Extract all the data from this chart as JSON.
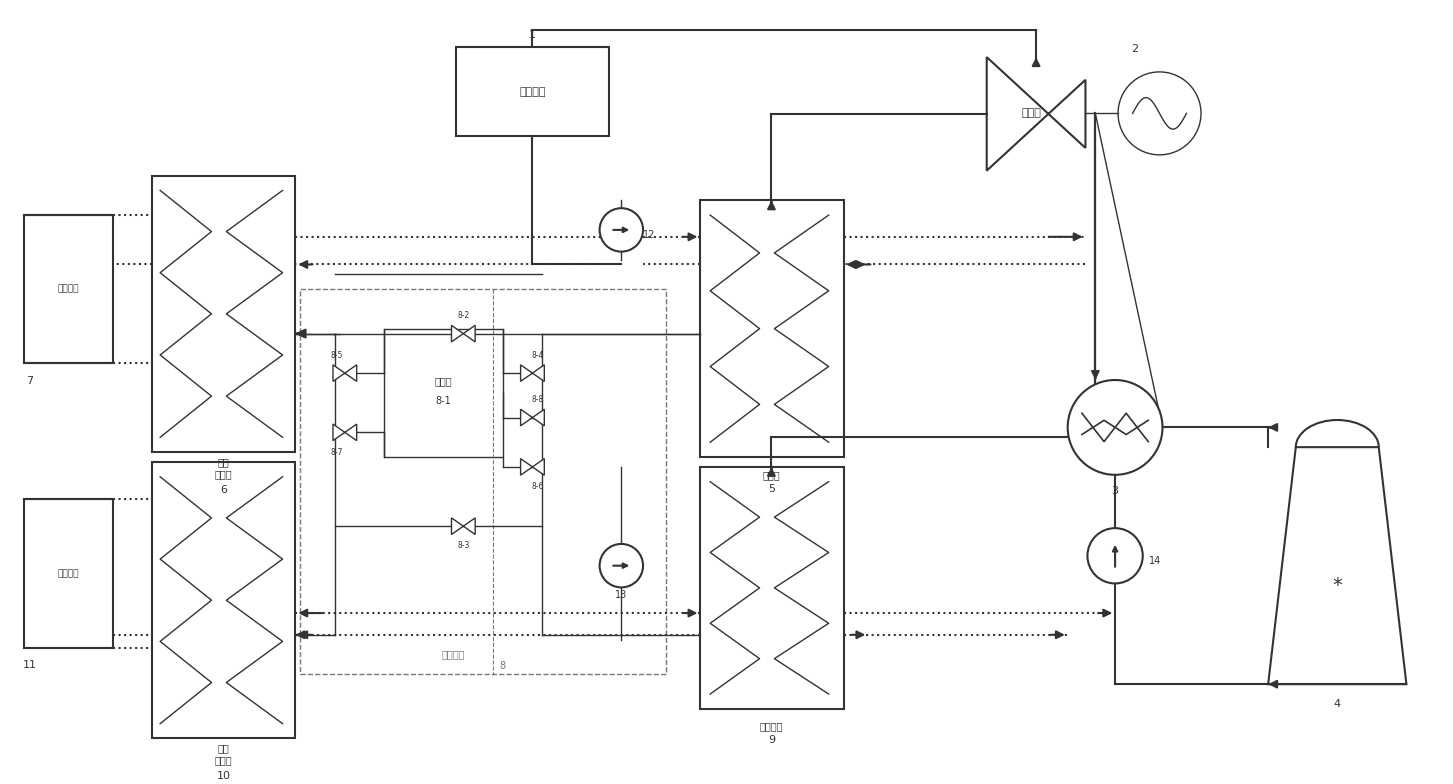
{
  "bg": "#ffffff",
  "lc": "#333333",
  "gray": "#777777",
  "fs_label": 7,
  "fs_num": 8,
  "lw_main": 1.5,
  "lw_thin": 1.0,
  "labels": {
    "boiler": "电站锅炉",
    "turbine": "汽轮机",
    "heater5": "加热器",
    "heatpump9": "热泵机组",
    "station6_1": "二级",
    "station6_2": "换热站",
    "station10_1": "二级",
    "station10_2": "换热站",
    "user7": "采暖用户",
    "user11": "采暖用户",
    "coupler1": "耦合器",
    "coupler2": "8-1",
    "coupling1": "耦合系统",
    "coupling2": "8"
  },
  "nums": {
    "n1": "1",
    "n2": "2",
    "n3": "3",
    "n4": "4",
    "n5": "5",
    "n6": "6",
    "n7": "7",
    "n8": "8",
    "n9": "9",
    "n10": "10",
    "n11": "11",
    "n12": "12",
    "n13": "13",
    "n14": "14"
  },
  "valves": {
    "v82": "8-2",
    "v83": "8-3",
    "v84": "8-4",
    "v85": "8-5",
    "v86": "8-6",
    "v87": "8-7",
    "v88": "8-8"
  }
}
